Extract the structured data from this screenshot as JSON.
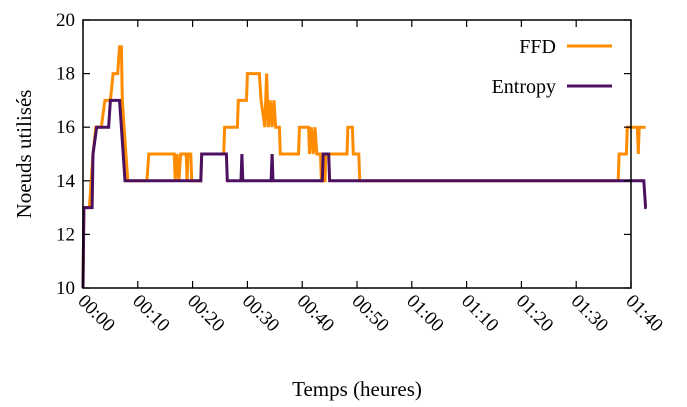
{
  "chart_data": {
    "type": "line",
    "xlabel": "Temps (heures)",
    "ylabel": "Noeuds utilisés",
    "ylim": [
      10,
      20
    ],
    "xlim": [
      0,
      6000
    ],
    "x_unit": "seconds",
    "yticks": [
      10,
      12,
      14,
      16,
      18,
      20
    ],
    "xticks": [
      {
        "t": 0,
        "label": "00:00"
      },
      {
        "t": 600,
        "label": "00:10"
      },
      {
        "t": 1200,
        "label": "00:20"
      },
      {
        "t": 1800,
        "label": "00:30"
      },
      {
        "t": 2400,
        "label": "00:40"
      },
      {
        "t": 3000,
        "label": "00:50"
      },
      {
        "t": 3600,
        "label": "01:00"
      },
      {
        "t": 4200,
        "label": "01:10"
      },
      {
        "t": 4800,
        "label": "01:20"
      },
      {
        "t": 5400,
        "label": "01:30"
      },
      {
        "t": 6000,
        "label": "01:40"
      }
    ],
    "grid": false,
    "legend_position": "top-right",
    "series": [
      {
        "name": "FFD",
        "color": "#ff8c00",
        "points": [
          [
            0,
            10
          ],
          [
            10,
            13
          ],
          [
            70,
            13
          ],
          [
            110,
            15
          ],
          [
            140,
            16
          ],
          [
            200,
            16
          ],
          [
            240,
            17
          ],
          [
            300,
            17
          ],
          [
            330,
            18
          ],
          [
            380,
            18
          ],
          [
            400,
            19
          ],
          [
            420,
            19
          ],
          [
            430,
            17
          ],
          [
            450,
            16
          ],
          [
            470,
            15
          ],
          [
            490,
            14
          ],
          [
            700,
            14
          ],
          [
            720,
            15
          ],
          [
            1000,
            15
          ],
          [
            1010,
            14
          ],
          [
            1030,
            15
          ],
          [
            1050,
            14
          ],
          [
            1070,
            15
          ],
          [
            1130,
            15
          ],
          [
            1140,
            14
          ],
          [
            1150,
            15
          ],
          [
            1180,
            15
          ],
          [
            1190,
            14
          ],
          [
            1290,
            14
          ],
          [
            1300,
            15
          ],
          [
            1540,
            15
          ],
          [
            1550,
            16
          ],
          [
            1690,
            16
          ],
          [
            1700,
            17
          ],
          [
            1790,
            17
          ],
          [
            1800,
            18
          ],
          [
            1930,
            18
          ],
          [
            1950,
            17
          ],
          [
            1990,
            16
          ],
          [
            2010,
            18
          ],
          [
            2030,
            16
          ],
          [
            2050,
            17
          ],
          [
            2070,
            16
          ],
          [
            2090,
            17
          ],
          [
            2110,
            16
          ],
          [
            2150,
            16
          ],
          [
            2160,
            15
          ],
          [
            2360,
            15
          ],
          [
            2370,
            16
          ],
          [
            2470,
            16
          ],
          [
            2480,
            15
          ],
          [
            2500,
            16
          ],
          [
            2520,
            15
          ],
          [
            2540,
            16
          ],
          [
            2560,
            15
          ],
          [
            2600,
            15
          ],
          [
            2610,
            14
          ],
          [
            2650,
            14
          ],
          [
            2660,
            15
          ],
          [
            2890,
            15
          ],
          [
            2900,
            16
          ],
          [
            2950,
            16
          ],
          [
            2960,
            15
          ],
          [
            3020,
            15
          ],
          [
            3030,
            14
          ],
          [
            5860,
            14
          ],
          [
            5870,
            15
          ],
          [
            5950,
            15
          ],
          [
            5960,
            16
          ],
          [
            6070,
            16
          ],
          [
            6080,
            15
          ],
          [
            6090,
            16
          ],
          [
            6160,
            16
          ]
        ]
      },
      {
        "name": "Entropy",
        "color": "#4b1060",
        "points": [
          [
            0,
            10
          ],
          [
            10,
            13
          ],
          [
            100,
            13
          ],
          [
            110,
            15
          ],
          [
            150,
            16
          ],
          [
            280,
            16
          ],
          [
            300,
            17
          ],
          [
            400,
            17
          ],
          [
            420,
            16
          ],
          [
            440,
            15
          ],
          [
            460,
            14
          ],
          [
            1290,
            14
          ],
          [
            1300,
            15
          ],
          [
            1570,
            15
          ],
          [
            1580,
            14
          ],
          [
            1730,
            14
          ],
          [
            1740,
            15
          ],
          [
            1750,
            14
          ],
          [
            2060,
            14
          ],
          [
            2070,
            15
          ],
          [
            2080,
            14
          ],
          [
            2620,
            14
          ],
          [
            2630,
            15
          ],
          [
            2690,
            15
          ],
          [
            2700,
            14
          ],
          [
            6140,
            14
          ],
          [
            6160,
            13
          ],
          [
            6170,
            13
          ]
        ]
      }
    ]
  }
}
